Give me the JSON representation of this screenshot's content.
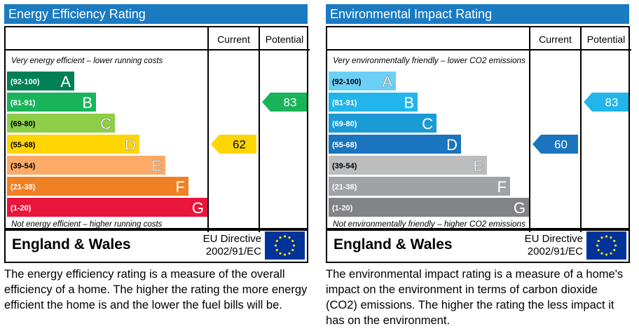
{
  "panels": {
    "efficiency": {
      "title": "Energy Efficiency Rating",
      "region": "England & Wales",
      "directive_line1": "EU Directive",
      "directive_line2": "2002/91/EC",
      "description": "The energy efficiency rating is a measure of the overall efficiency of a home.  The higher the rating the more energy efficient the home is and the lower the fuel bills will be."
    },
    "environmental": {
      "title": "Environmental Impact Rating",
      "region": "England & Wales",
      "directive_line1": "EU Directive",
      "directive_line2": "2002/91/EC",
      "description": "The environmental impact rating is a measure of a home's impact on the environment in terms of carbon dioxide (CO2) emissions.  The higher the rating the less impact it has on the environment."
    }
  },
  "chart_data": [
    {
      "type": "bar",
      "col_current": "Current",
      "col_potential": "Potential",
      "top_note": "Very energy efficient – lower running costs",
      "bottom_note": "Not energy efficient – higher running costs",
      "bands": [
        {
          "range": "(92-100)",
          "letter": "A",
          "color": "#008054"
        },
        {
          "range": "(81-91)",
          "letter": "B",
          "color": "#19b459"
        },
        {
          "range": "(69-80)",
          "letter": "C",
          "color": "#8dce46"
        },
        {
          "range": "(55-68)",
          "letter": "D",
          "color": "#ffd500"
        },
        {
          "range": "(39-54)",
          "letter": "E",
          "color": "#fcaa65"
        },
        {
          "range": "(21-38)",
          "letter": "F",
          "color": "#ef8023"
        },
        {
          "range": "(1-20)",
          "letter": "G",
          "color": "#e9153b"
        }
      ],
      "current": {
        "value": 62,
        "band": "D",
        "color": "#ffd500"
      },
      "potential": {
        "value": 83,
        "band": "B",
        "color": "#19b459"
      }
    },
    {
      "type": "bar",
      "col_current": "Current",
      "col_potential": "Potential",
      "top_note": "Very environmentally friendly – lower CO2 emissions",
      "bottom_note": "Not environmentally friendly – higher CO2 emissions",
      "bands": [
        {
          "range": "(92-100)",
          "letter": "A",
          "color": "#6ccff6"
        },
        {
          "range": "(81-91)",
          "letter": "B",
          "color": "#22b5eb"
        },
        {
          "range": "(69-80)",
          "letter": "C",
          "color": "#1a9bd6"
        },
        {
          "range": "(55-68)",
          "letter": "D",
          "color": "#1a74be"
        },
        {
          "range": "(39-54)",
          "letter": "E",
          "color": "#bbbdbf"
        },
        {
          "range": "(21-38)",
          "letter": "F",
          "color": "#a0a2a5"
        },
        {
          "range": "(1-20)",
          "letter": "G",
          "color": "#828386"
        }
      ],
      "current": {
        "value": 60,
        "band": "D",
        "color": "#1a74be"
      },
      "potential": {
        "value": 83,
        "band": "B",
        "color": "#22b5eb"
      }
    }
  ]
}
